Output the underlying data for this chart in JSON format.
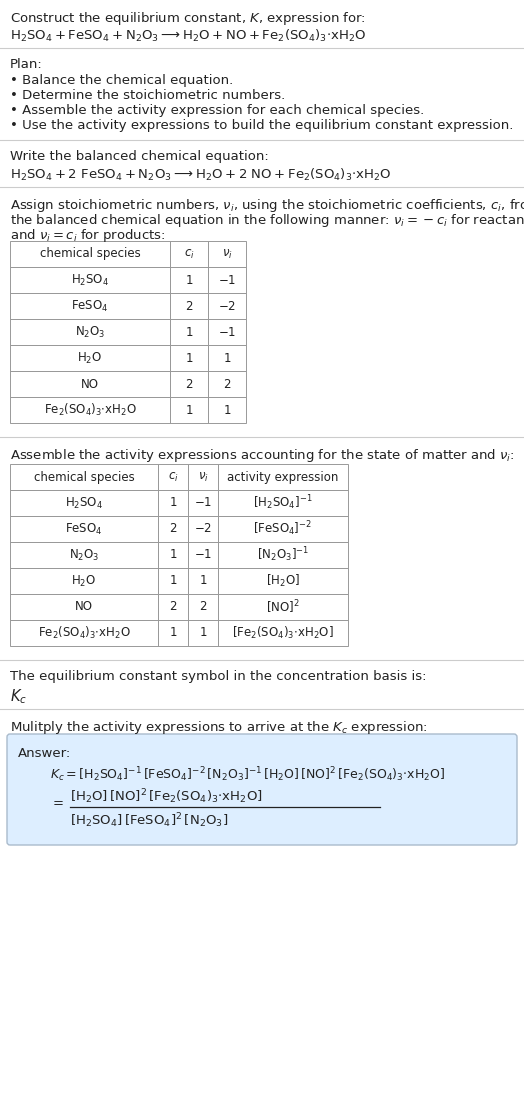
{
  "bg_color": "#ffffff",
  "text_color": "#222222",
  "table_border_color": "#999999",
  "answer_box_bg": "#ddeeff",
  "answer_box_border": "#aabbcc",
  "fs": 9.5,
  "fs_small": 8.5,
  "title_line1": "Construct the equilibrium constant, $K$, expression for:",
  "title_line2": "$\\mathrm{H_2SO_4 + FeSO_4 + N_2O_3 \\longrightarrow H_2O + NO + Fe_2(SO_4)_3{\\cdot}xH_2O}$",
  "plan_header": "Plan:",
  "plan_items": [
    "• Balance the chemical equation.",
    "• Determine the stoichiometric numbers.",
    "• Assemble the activity expression for each chemical species.",
    "• Use the activity expressions to build the equilibrium constant expression."
  ],
  "balanced_header": "Write the balanced chemical equation:",
  "balanced_eq": "$\\mathrm{H_2SO_4 + 2\\ FeSO_4 + N_2O_3 \\longrightarrow H_2O + 2\\ NO + Fe_2(SO_4)_3{\\cdot}xH_2O}$",
  "stoich_line1": "Assign stoichiometric numbers, $\\nu_i$, using the stoichiometric coefficients, $c_i$, from",
  "stoich_line2": "the balanced chemical equation in the following manner: $\\nu_i = -c_i$ for reactants",
  "stoich_line3": "and $\\nu_i = c_i$ for products:",
  "table1_cols": [
    "chemical species",
    "$c_i$",
    "$\\nu_i$"
  ],
  "table1_rows": [
    [
      "$\\mathrm{H_2SO_4}$",
      "1",
      "$-1$"
    ],
    [
      "$\\mathrm{FeSO_4}$",
      "2",
      "$-2$"
    ],
    [
      "$\\mathrm{N_2O_3}$",
      "1",
      "$-1$"
    ],
    [
      "$\\mathrm{H_2O}$",
      "1",
      "$1$"
    ],
    [
      "NO",
      "2",
      "$2$"
    ],
    [
      "$\\mathrm{Fe_2(SO_4)_3{\\cdot}xH_2O}$",
      "1",
      "$1$"
    ]
  ],
  "activity_header": "Assemble the activity expressions accounting for the state of matter and $\\nu_i$:",
  "table2_cols": [
    "chemical species",
    "$c_i$",
    "$\\nu_i$",
    "activity expression"
  ],
  "table2_rows": [
    [
      "$\\mathrm{H_2SO_4}$",
      "1",
      "$-1$",
      "$[\\mathrm{H_2SO_4}]^{-1}$"
    ],
    [
      "$\\mathrm{FeSO_4}$",
      "2",
      "$-2$",
      "$[\\mathrm{FeSO_4}]^{-2}$"
    ],
    [
      "$\\mathrm{N_2O_3}$",
      "1",
      "$-1$",
      "$[\\mathrm{N_2O_3}]^{-1}$"
    ],
    [
      "$\\mathrm{H_2O}$",
      "1",
      "$1$",
      "$[\\mathrm{H_2O}]$"
    ],
    [
      "NO",
      "2",
      "$2$",
      "$[\\mathrm{NO}]^{2}$"
    ],
    [
      "$\\mathrm{Fe_2(SO_4)_3{\\cdot}xH_2O}$",
      "1",
      "$1$",
      "$[\\mathrm{Fe_2(SO_4)_3{\\cdot}xH_2O}]$"
    ]
  ],
  "kc_header": "The equilibrium constant symbol in the concentration basis is:",
  "kc_symbol": "$K_c$",
  "multiply_header": "Mulitply the activity expressions to arrive at the $K_c$ expression:",
  "answer_label": "Answer:",
  "answer_line1": "$K_c = [\\mathrm{H_2SO_4}]^{-1}\\,[\\mathrm{FeSO_4}]^{-2}\\,[\\mathrm{N_2O_3}]^{-1}\\,[\\mathrm{H_2O}]\\,[\\mathrm{NO}]^{2}\\,[\\mathrm{Fe_2(SO_4)_3{\\cdot}xH_2O}]$",
  "answer_numer": "$[\\mathrm{H_2O}]\\,[\\mathrm{NO}]^{2}\\,[\\mathrm{Fe_2(SO_4)_3{\\cdot}xH_2O}]$",
  "answer_denom": "$[\\mathrm{H_2SO_4}]\\,[\\mathrm{FeSO_4}]^{2}\\,[\\mathrm{N_2O_3}]$"
}
